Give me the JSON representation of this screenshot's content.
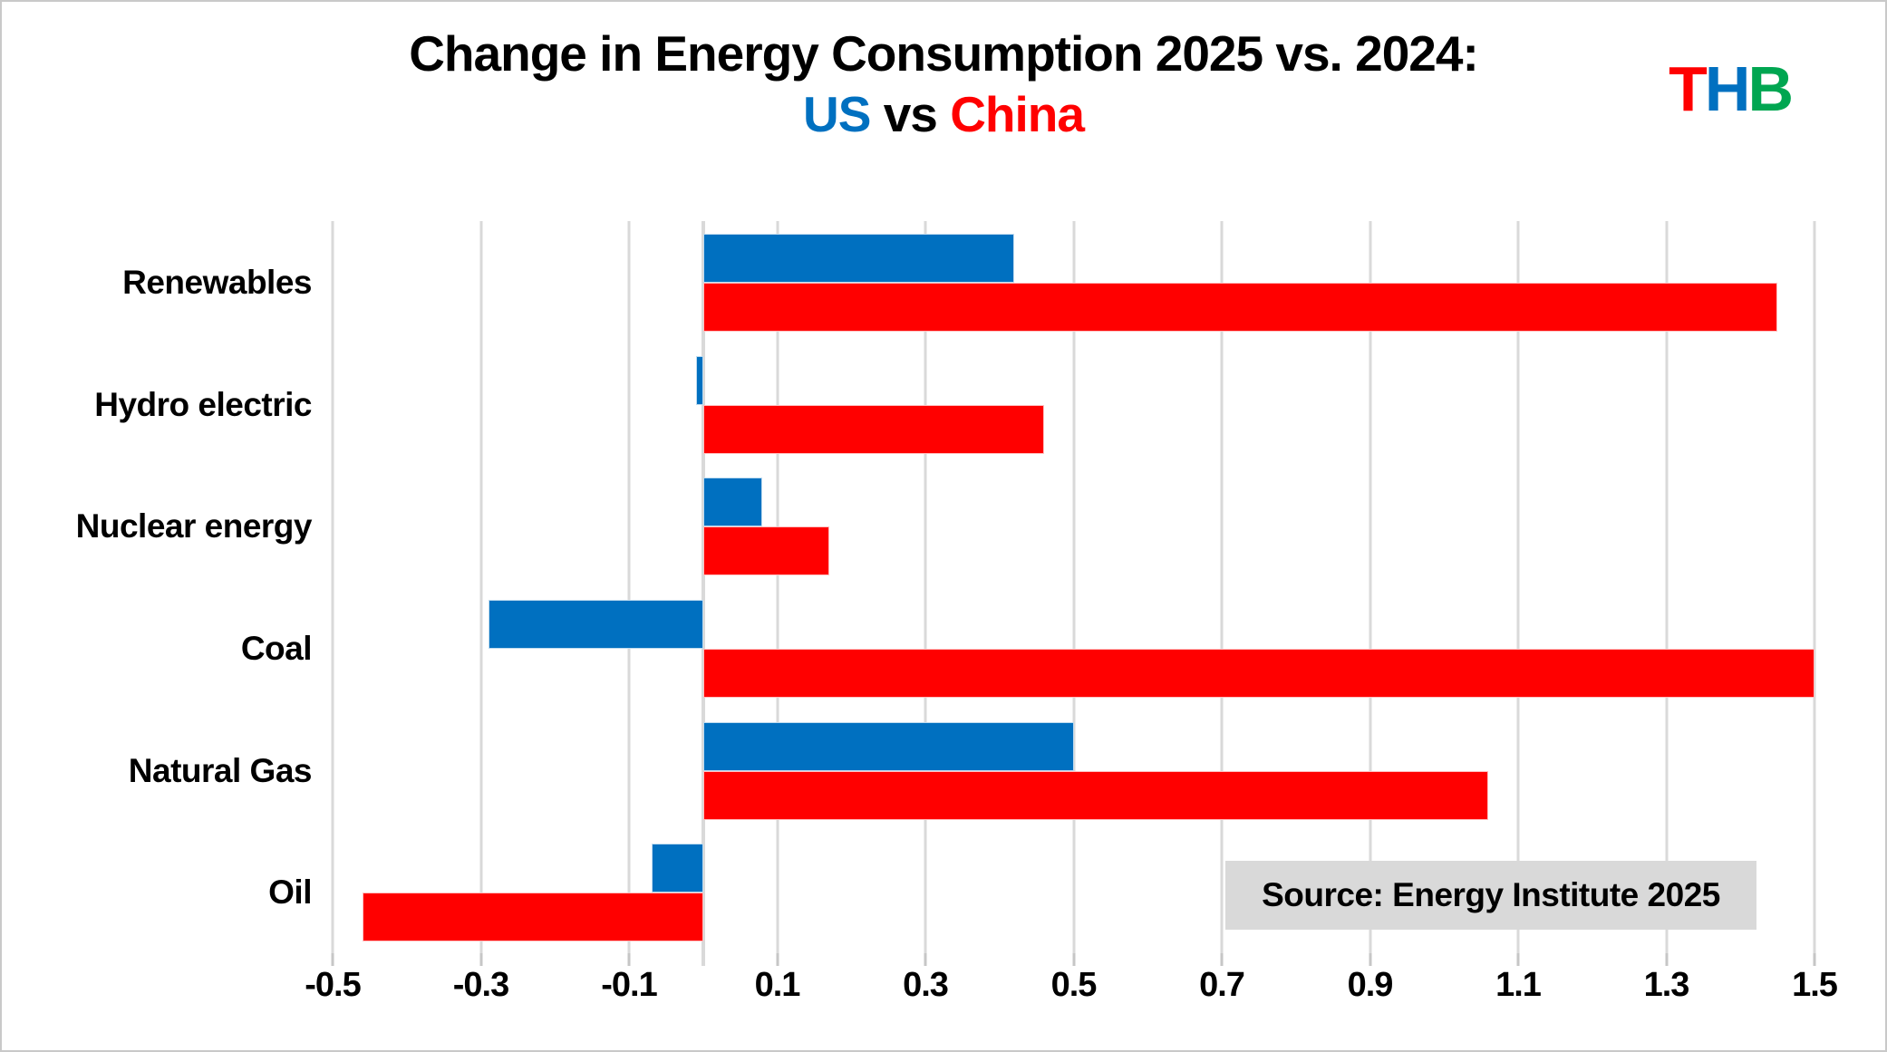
{
  "title": {
    "line1": "Change in Energy Consumption 2025 vs. 2024:",
    "us": "US",
    "vs": " vs ",
    "china": "China"
  },
  "logo": {
    "t": "T",
    "h": "H",
    "b": "B",
    "t_color": "#ff0000",
    "h_color": "#0070c0",
    "b_color": "#00a651"
  },
  "source_note": "Source: Energy Institute 2025",
  "colors": {
    "us": "#0070c0",
    "china": "#ff0000",
    "gridline": "#d9d9d9",
    "zero_line": "#d9d9d9",
    "tick": "#c6c6c6",
    "source_box_bg": "#d9d9d9",
    "title_text": "#000000"
  },
  "chart_data": {
    "type": "bar",
    "orientation": "horizontal",
    "title": "Change in Energy Consumption 2025 vs. 2024: US vs China",
    "categories": [
      "Renewables",
      "Hydro electric",
      "Nuclear energy",
      "Coal",
      "Natural Gas",
      "Oil"
    ],
    "series": [
      {
        "name": "US",
        "color": "#0070c0",
        "values": [
          0.42,
          -0.01,
          0.08,
          -0.29,
          0.5,
          -0.07
        ]
      },
      {
        "name": "China",
        "color": "#ff0000",
        "values": [
          1.45,
          0.46,
          0.17,
          1.5,
          1.06,
          -0.46
        ]
      }
    ],
    "xlim": [
      -0.5,
      1.5
    ],
    "xticks": [
      -0.5,
      -0.3,
      -0.1,
      0.1,
      0.3,
      0.5,
      0.7,
      0.9,
      1.1,
      1.3,
      1.5
    ],
    "grid": true,
    "legend": "inline-title-colors",
    "source": "Source: Energy Institute 2025"
  }
}
